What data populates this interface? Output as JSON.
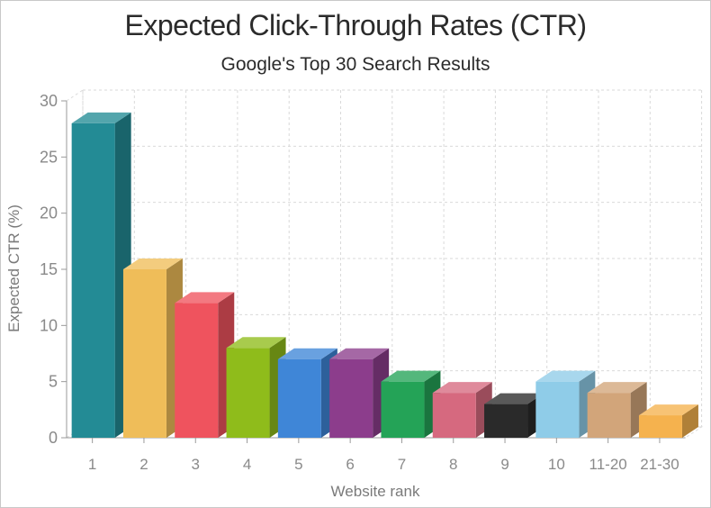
{
  "chart_data": {
    "type": "bar",
    "title": "Expected Click-Through Rates (CTR)",
    "subtitle": "Google's Top 30 Search Results",
    "xlabel": "Website rank",
    "ylabel": "Expected CTR (%)",
    "ylim": [
      0,
      30
    ],
    "yticks": [
      0,
      5,
      10,
      15,
      20,
      25,
      30
    ],
    "grid": true,
    "categories": [
      "1",
      "2",
      "3",
      "4",
      "5",
      "6",
      "7",
      "8",
      "9",
      "10",
      "11-20",
      "21-30"
    ],
    "values": [
      28,
      15,
      12,
      8,
      7,
      7,
      5,
      4,
      3,
      5,
      4,
      2
    ],
    "colors": [
      "#238b95",
      "#efbd59",
      "#ef535e",
      "#8fbc1b",
      "#3f86d7",
      "#8c3d8c",
      "#24a357",
      "#d6697f",
      "#2a2a2a",
      "#8fcce8",
      "#d2a57a",
      "#f5b24e"
    ]
  }
}
